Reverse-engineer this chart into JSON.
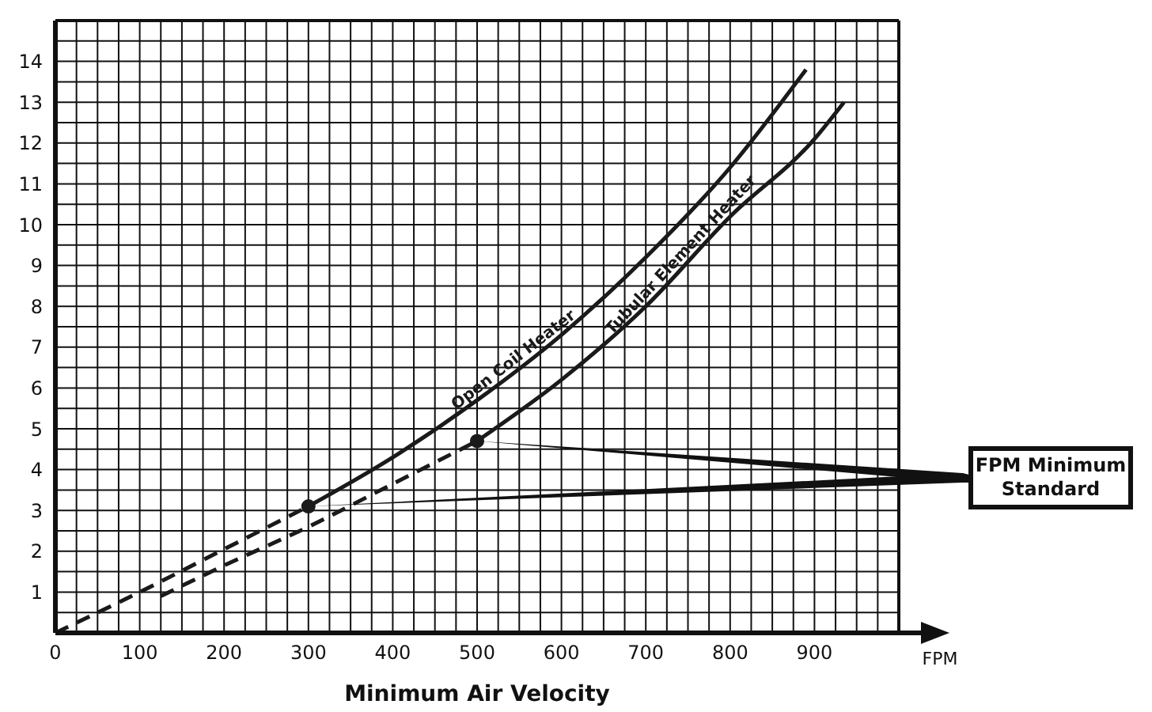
{
  "chart_data": {
    "type": "line",
    "xlabel": "Minimum Air Velocity",
    "annotations": [
      "FPM Minimum Standard",
      "FPM"
    ],
    "xlim": [
      0,
      1000
    ],
    "ylim": [
      0,
      15
    ],
    "xticks": [
      0,
      {
        "value": 25,
        "label": null
      },
      {
        "value": 50,
        "label": null
      },
      {
        "value": 75,
        "label": null
      },
      100,
      {
        "value": 125,
        "label": null
      },
      {
        "value": 150,
        "label": null
      },
      {
        "value": 175,
        "label": null
      },
      200,
      {
        "value": 225,
        "label": null
      },
      {
        "value": 250,
        "label": null
      },
      {
        "value": 275,
        "label": null
      },
      300,
      {
        "value": 325,
        "label": null
      },
      {
        "value": 350,
        "label": null
      },
      {
        "value": 375,
        "label": null
      },
      400,
      {
        "value": 425,
        "label": null
      },
      {
        "value": 450,
        "label": null
      },
      {
        "value": 475,
        "label": null
      },
      500,
      {
        "value": 525,
        "label": null
      },
      {
        "value": 550,
        "label": null
      },
      {
        "value": 575,
        "label": null
      },
      600,
      {
        "value": 625,
        "label": null
      },
      {
        "value": 650,
        "label": null
      },
      {
        "value": 675,
        "label": null
      },
      700,
      {
        "value": 725,
        "label": null
      },
      {
        "value": 750,
        "label": null
      },
      {
        "value": 775,
        "label": null
      },
      800,
      {
        "value": 825,
        "label": null
      },
      {
        "value": 850,
        "label": null
      },
      {
        "value": 875,
        "label": null
      },
      900,
      {
        "value": 925,
        "label": null
      },
      {
        "value": 950,
        "label": null
      },
      {
        "value": 975,
        "label": null
      },
      {
        "value": 1000,
        "label": null
      }
    ],
    "yticks": [
      {
        "value": 0,
        "label": null
      },
      {
        "value": 0.5,
        "label": null
      },
      1,
      {
        "value": 1.5,
        "label": null
      },
      2,
      {
        "value": 2.5,
        "label": null
      },
      3,
      {
        "value": 3.5,
        "label": null
      },
      4,
      {
        "value": 4.5,
        "label": null
      },
      5,
      {
        "value": 5.5,
        "label": null
      },
      6,
      {
        "value": 6.5,
        "label": null
      },
      7,
      {
        "value": 7.5,
        "label": null
      },
      8,
      {
        "value": 8.5,
        "label": null
      },
      9,
      {
        "value": 9.5,
        "label": null
      },
      10,
      {
        "value": 10.5,
        "label": null
      },
      11,
      {
        "value": 11.5,
        "label": null
      },
      12,
      {
        "value": 12.5,
        "label": null
      },
      13,
      {
        "value": 13.5,
        "label": null
      },
      14,
      {
        "value": 14.5,
        "label": null
      },
      {
        "value": 15,
        "label": null
      }
    ],
    "grid": true,
    "marker": "none",
    "series": [
      {
        "color": "#1a1a1a",
        "line_style": "dashed",
        "x": [
          0,
          100,
          200,
          300
        ],
        "values": [
          0,
          1.0,
          2.05,
          3.1
        ]
      },
      {
        "name": "Open Coil Heater",
        "color": "#1a1a1a",
        "line_style": "solid",
        "x": [
          300,
          400,
          500,
          600,
          700,
          800,
          890
        ],
        "values": [
          3.1,
          4.3,
          5.7,
          7.3,
          9.2,
          11.4,
          13.8
        ]
      },
      {
        "color": "#1a1a1a",
        "line_style": "dashed",
        "x": [
          125,
          200,
          300,
          400,
          500
        ],
        "values": [
          0.9,
          1.65,
          2.6,
          3.65,
          4.7
        ]
      },
      {
        "name": "Tubular Element Heater",
        "color": "#1a1a1a",
        "line_style": "solid",
        "x": [
          500,
          600,
          700,
          800,
          900,
          935
        ],
        "values": [
          4.7,
          6.2,
          8.0,
          10.2,
          12.1,
          13.0
        ]
      },
      {
        "type": "scatter",
        "marker": "circle",
        "color": "#1a1a1a",
        "x": [
          300,
          500
        ],
        "values": [
          3.1,
          4.7
        ]
      }
    ]
  }
}
